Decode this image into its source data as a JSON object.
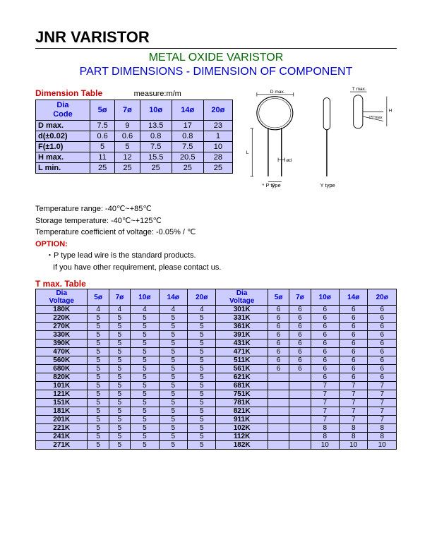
{
  "main_title": "JNR VARISTOR",
  "subtitle1": "METAL OXIDE VARISTOR",
  "subtitle2": "PART DIMENSIONS - DIMENSION OF COMPONENT",
  "dim_table_title": "Dimension Table",
  "measure_label": "measure:m/m",
  "dim_header1": "Dia",
  "dim_header2": "Code",
  "dim_cols": [
    "5ø",
    "7ø",
    "10ø",
    "14ø",
    "20ø"
  ],
  "dim_rows": [
    {
      "label": "D max.",
      "vals": [
        "7.5",
        "9",
        "13.5",
        "17",
        "23"
      ]
    },
    {
      "label": "d(±0.02)",
      "vals": [
        "0.6",
        "0.6",
        "0.8",
        "0.8",
        "1"
      ]
    },
    {
      "label": "F(±1.0)",
      "vals": [
        "5",
        "5",
        "7.5",
        "7.5",
        "10"
      ]
    },
    {
      "label": "H max.",
      "vals": [
        "11",
        "12",
        "15.5",
        "20.5",
        "28"
      ]
    },
    {
      "label": "L min.",
      "vals": [
        "25",
        "25",
        "25",
        "25",
        "25"
      ]
    }
  ],
  "notes": {
    "temp_range": "Temperature range: -40℃~+85℃",
    "storage": "Storage temperature: -40℃~+125℃",
    "coeff": "Temperature coefficient of voltage: -0.05%  / ℃",
    "option_label": "OPTION:",
    "option1": "・P type lead wire is the standard products.",
    "option2": "If you have other requirement, please contact us."
  },
  "diagram": {
    "d_max": "D max.",
    "t_max": "T max.",
    "angle": "15°max",
    "phi_d": "ød",
    "f": "F",
    "p_type": "* P type",
    "y_type": "Y type"
  },
  "tmax_title": "T max. Table",
  "tmax_header1": "Dia",
  "tmax_header2": "Voltage",
  "tmax_cols": [
    "5ø",
    "7ø",
    "10ø",
    "14ø",
    "20ø"
  ],
  "tmax_left": [
    {
      "v": "180K",
      "vals": [
        "4",
        "4",
        "4",
        "4",
        "4"
      ]
    },
    {
      "v": "220K",
      "vals": [
        "5",
        "5",
        "5",
        "5",
        "5"
      ]
    },
    {
      "v": "270K",
      "vals": [
        "5",
        "5",
        "5",
        "5",
        "5"
      ]
    },
    {
      "v": "330K",
      "vals": [
        "5",
        "5",
        "5",
        "5",
        "5"
      ]
    },
    {
      "v": "390K",
      "vals": [
        "5",
        "5",
        "5",
        "5",
        "5"
      ]
    },
    {
      "v": "470K",
      "vals": [
        "5",
        "5",
        "5",
        "5",
        "5"
      ]
    },
    {
      "v": "560K",
      "vals": [
        "5",
        "5",
        "5",
        "5",
        "5"
      ]
    },
    {
      "v": "680K",
      "vals": [
        "5",
        "5",
        "5",
        "5",
        "5"
      ]
    },
    {
      "v": "820K",
      "vals": [
        "5",
        "5",
        "5",
        "5",
        "5"
      ]
    },
    {
      "v": "101K",
      "vals": [
        "5",
        "5",
        "5",
        "5",
        "5"
      ]
    },
    {
      "v": "121K",
      "vals": [
        "5",
        "5",
        "5",
        "5",
        "5"
      ]
    },
    {
      "v": "151K",
      "vals": [
        "5",
        "5",
        "5",
        "5",
        "5"
      ]
    },
    {
      "v": "181K",
      "vals": [
        "5",
        "5",
        "5",
        "5",
        "5"
      ]
    },
    {
      "v": "201K",
      "vals": [
        "5",
        "5",
        "5",
        "5",
        "5"
      ]
    },
    {
      "v": "221K",
      "vals": [
        "5",
        "5",
        "5",
        "5",
        "5"
      ]
    },
    {
      "v": "241K",
      "vals": [
        "5",
        "5",
        "5",
        "5",
        "5"
      ]
    },
    {
      "v": "271K",
      "vals": [
        "5",
        "5",
        "5",
        "5",
        "5"
      ]
    }
  ],
  "tmax_right": [
    {
      "v": "301K",
      "vals": [
        "6",
        "6",
        "6",
        "6",
        "6"
      ]
    },
    {
      "v": "331K",
      "vals": [
        "6",
        "6",
        "6",
        "6",
        "6"
      ]
    },
    {
      "v": "361K",
      "vals": [
        "6",
        "6",
        "6",
        "6",
        "6"
      ]
    },
    {
      "v": "391K",
      "vals": [
        "6",
        "6",
        "6",
        "6",
        "6"
      ]
    },
    {
      "v": "431K",
      "vals": [
        "6",
        "6",
        "6",
        "6",
        "6"
      ]
    },
    {
      "v": "471K",
      "vals": [
        "6",
        "6",
        "6",
        "6",
        "6"
      ]
    },
    {
      "v": "511K",
      "vals": [
        "6",
        "6",
        "6",
        "6",
        "6"
      ]
    },
    {
      "v": "561K",
      "vals": [
        "6",
        "6",
        "6",
        "6",
        "6"
      ]
    },
    {
      "v": "621K",
      "vals": [
        "",
        "",
        "6",
        "6",
        "6"
      ]
    },
    {
      "v": "681K",
      "vals": [
        "",
        "",
        "7",
        "7",
        "7"
      ]
    },
    {
      "v": "751K",
      "vals": [
        "",
        "",
        "7",
        "7",
        "7"
      ]
    },
    {
      "v": "781K",
      "vals": [
        "",
        "",
        "7",
        "7",
        "7"
      ]
    },
    {
      "v": "821K",
      "vals": [
        "",
        "",
        "7",
        "7",
        "7"
      ]
    },
    {
      "v": "911K",
      "vals": [
        "",
        "",
        "7",
        "7",
        "7"
      ]
    },
    {
      "v": "102K",
      "vals": [
        "",
        "",
        "8",
        "8",
        "8"
      ]
    },
    {
      "v": "112K",
      "vals": [
        "",
        "",
        "8",
        "8",
        "8"
      ]
    },
    {
      "v": "182K",
      "vals": [
        "",
        "",
        "10",
        "10",
        "10"
      ]
    }
  ]
}
